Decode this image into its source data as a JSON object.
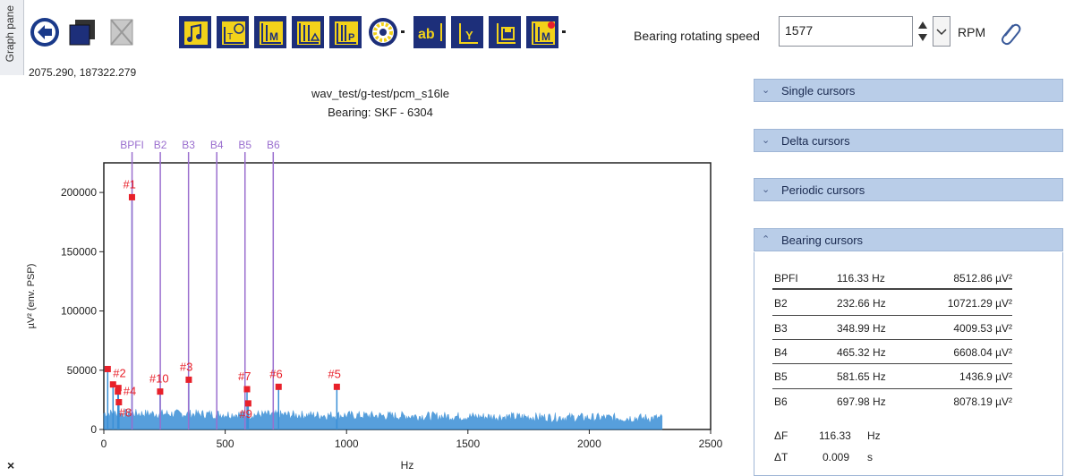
{
  "graph_pane_tab": "Graph pane",
  "toolbar": {
    "speed_label": "Bearing rotating speed",
    "speed_value": "1577",
    "speed_unit": "RPM",
    "buttons": [
      "back-icon",
      "window-icon",
      "disabled-image-icon",
      "audio-export-icon",
      "time-waveform-icon",
      "marker-icon",
      "multi-marker-icon",
      "peak-marker-icon",
      "bearing-icon",
      "text-label-icon",
      "y-axis-icon",
      "save-icon",
      "marker-menu-icon"
    ]
  },
  "coord_readout": "2075.290, 187322.279",
  "chart_data": {
    "type": "line",
    "title": "wav_test/g-test/pcm_s16le",
    "subtitle": "Bearing:  SKF - 6304",
    "xlabel": "Hz",
    "ylabel": "µV² (env. PSP)",
    "xlim": [
      0,
      2500
    ],
    "ylim": [
      0,
      225000
    ],
    "x_ticks": [
      "0",
      "500",
      "1000",
      "1500",
      "2000",
      "2500"
    ],
    "y_ticks": [
      "0",
      "50000",
      "100000",
      "150000",
      "200000"
    ],
    "bearing_lines": [
      {
        "label": "BPFI",
        "x": 116.33
      },
      {
        "label": "B2",
        "x": 232.66
      },
      {
        "label": "B3",
        "x": 348.99
      },
      {
        "label": "B4",
        "x": 465.32
      },
      {
        "label": "B5",
        "x": 581.65
      },
      {
        "label": "B6",
        "x": 697.98
      }
    ],
    "markers": [
      {
        "label": "#1",
        "x": 116,
        "y": 196000
      },
      {
        "label": "#2",
        "x": 38,
        "y": 38000
      },
      {
        "label": "#4",
        "x": 58,
        "y": 32000
      },
      {
        "label": "#8",
        "x": 62,
        "y": 23000
      },
      {
        "label": "#10",
        "x": 232,
        "y": 32000
      },
      {
        "label": "#3",
        "x": 350,
        "y": 42000
      },
      {
        "label": "#7",
        "x": 590,
        "y": 34000
      },
      {
        "label": "#9",
        "x": 595,
        "y": 22000
      },
      {
        "label": "#6",
        "x": 720,
        "y": 36000
      },
      {
        "label": "#5",
        "x": 960,
        "y": 36000
      }
    ],
    "extra_points": [
      {
        "x": 16,
        "y": 51000
      },
      {
        "x": 60,
        "y": 35000
      }
    ],
    "noise_floor": {
      "x_end": 2300,
      "base": 12000,
      "amplitude": 8000
    },
    "series_color": "#3a8fd6",
    "marker_color": "#e8202a",
    "bearing_line_color": "#9b6fcf"
  },
  "panels": {
    "single": "Single cursors",
    "delta": "Delta cursors",
    "periodic": "Periodic cursors",
    "bearing": "Bearing cursors"
  },
  "bearing_table": [
    {
      "name": "BPFI",
      "freq": "116.33 Hz",
      "amp": "8512.86 µV²"
    },
    {
      "name": "B2",
      "freq": "232.66 Hz",
      "amp": "10721.29 µV²"
    },
    {
      "name": "B3",
      "freq": "348.99 Hz",
      "amp": "4009.53 µV²"
    },
    {
      "name": "B4",
      "freq": "465.32 Hz",
      "amp": "6608.04 µV²"
    },
    {
      "name": "B5",
      "freq": "581.65 Hz",
      "amp": "1436.9 µV²"
    },
    {
      "name": "B6",
      "freq": "697.98 Hz",
      "amp": "8078.19 µV²"
    }
  ],
  "delta": {
    "f_label": "ΔF",
    "f_value": "116.33",
    "f_unit": "Hz",
    "t_label": "ΔT",
    "t_value": "0.009",
    "t_unit": "s"
  },
  "close_glyph": "×"
}
